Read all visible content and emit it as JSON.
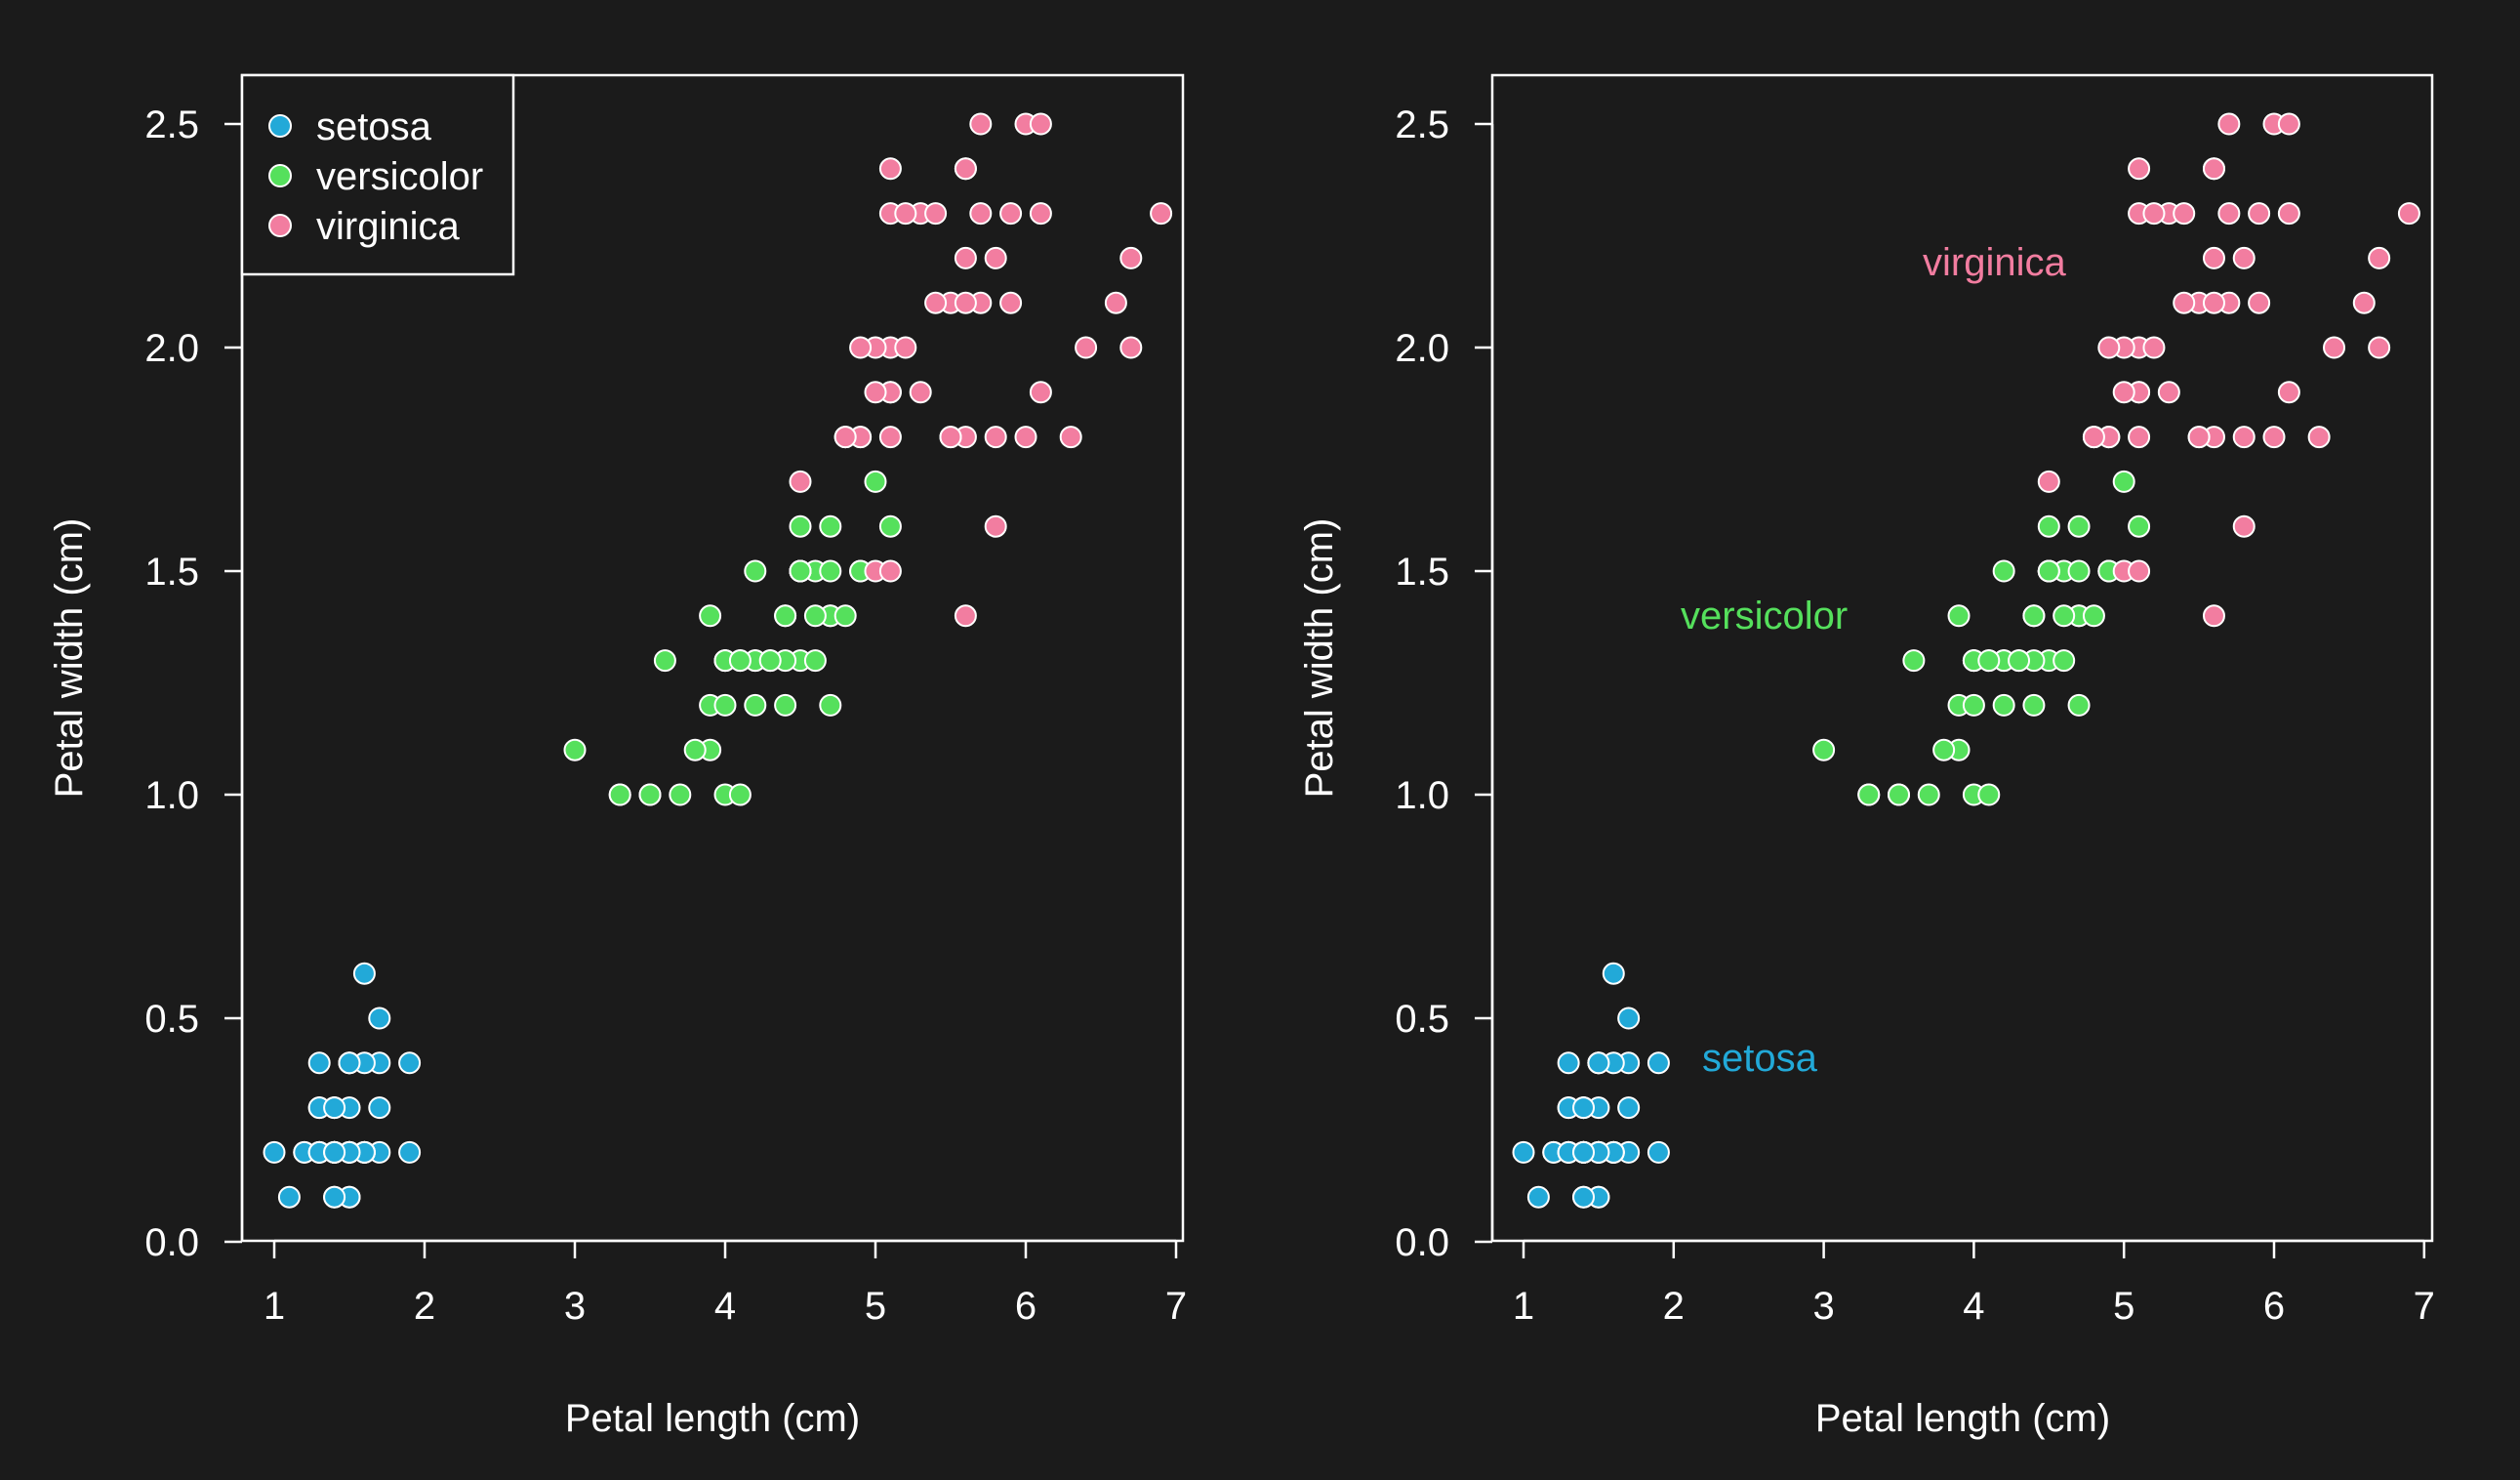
{
  "colors": {
    "background": "#1b1b1b",
    "foreground": "#ffffff",
    "setosa": "#22a9d8",
    "versicolor": "#55e05c",
    "virginica": "#f27da0",
    "marker_edge": "#ffffff"
  },
  "chart_data": [
    {
      "type": "scatter",
      "xlabel": "Petal length (cm)",
      "ylabel": "Petal width (cm)",
      "xlim": [
        0.8,
        7.1
      ],
      "ylim": [
        -0.03,
        2.6
      ],
      "xticks": [
        1,
        2,
        3,
        4,
        5,
        6,
        7
      ],
      "yticks": [
        0.0,
        0.5,
        1.0,
        1.5,
        2.0,
        2.5
      ],
      "xtick_labels": [
        "1",
        "2",
        "3",
        "4",
        "5",
        "6",
        "7"
      ],
      "ytick_labels": [
        "0.0",
        "0.5",
        "1.0",
        "1.5",
        "2.0",
        "2.5"
      ],
      "grid": false,
      "legend": "top-left",
      "legend_entries": [
        "setosa",
        "versicolor",
        "virginica"
      ],
      "series": [
        {
          "name": "setosa",
          "color": "#22a9d8",
          "points": [
            [
              1.4,
              0.2
            ],
            [
              1.4,
              0.2
            ],
            [
              1.3,
              0.2
            ],
            [
              1.5,
              0.2
            ],
            [
              1.4,
              0.2
            ],
            [
              1.7,
              0.4
            ],
            [
              1.4,
              0.3
            ],
            [
              1.5,
              0.2
            ],
            [
              1.4,
              0.2
            ],
            [
              1.5,
              0.1
            ],
            [
              1.5,
              0.2
            ],
            [
              1.6,
              0.2
            ],
            [
              1.4,
              0.1
            ],
            [
              1.1,
              0.1
            ],
            [
              1.2,
              0.2
            ],
            [
              1.5,
              0.4
            ],
            [
              1.3,
              0.4
            ],
            [
              1.4,
              0.3
            ],
            [
              1.7,
              0.3
            ],
            [
              1.5,
              0.3
            ],
            [
              1.7,
              0.2
            ],
            [
              1.5,
              0.4
            ],
            [
              1.0,
              0.2
            ],
            [
              1.7,
              0.5
            ],
            [
              1.9,
              0.2
            ],
            [
              1.6,
              0.2
            ],
            [
              1.6,
              0.4
            ],
            [
              1.5,
              0.2
            ],
            [
              1.4,
              0.2
            ],
            [
              1.6,
              0.2
            ],
            [
              1.6,
              0.2
            ],
            [
              1.5,
              0.4
            ],
            [
              1.5,
              0.1
            ],
            [
              1.4,
              0.2
            ],
            [
              1.5,
              0.2
            ],
            [
              1.2,
              0.2
            ],
            [
              1.3,
              0.2
            ],
            [
              1.4,
              0.1
            ],
            [
              1.3,
              0.2
            ],
            [
              1.5,
              0.2
            ],
            [
              1.3,
              0.3
            ],
            [
              1.3,
              0.3
            ],
            [
              1.3,
              0.2
            ],
            [
              1.6,
              0.6
            ],
            [
              1.9,
              0.4
            ],
            [
              1.4,
              0.3
            ],
            [
              1.6,
              0.2
            ],
            [
              1.4,
              0.2
            ],
            [
              1.5,
              0.2
            ],
            [
              1.4,
              0.2
            ]
          ]
        },
        {
          "name": "versicolor",
          "color": "#55e05c",
          "points": [
            [
              4.7,
              1.4
            ],
            [
              4.5,
              1.5
            ],
            [
              4.9,
              1.5
            ],
            [
              4.0,
              1.3
            ],
            [
              4.6,
              1.5
            ],
            [
              4.5,
              1.3
            ],
            [
              4.7,
              1.6
            ],
            [
              3.3,
              1.0
            ],
            [
              4.6,
              1.3
            ],
            [
              3.9,
              1.4
            ],
            [
              3.5,
              1.0
            ],
            [
              4.2,
              1.5
            ],
            [
              4.0,
              1.0
            ],
            [
              4.7,
              1.4
            ],
            [
              3.6,
              1.3
            ],
            [
              4.4,
              1.4
            ],
            [
              4.5,
              1.5
            ],
            [
              4.1,
              1.0
            ],
            [
              4.5,
              1.5
            ],
            [
              3.9,
              1.1
            ],
            [
              4.8,
              1.8
            ],
            [
              4.0,
              1.3
            ],
            [
              4.9,
              1.5
            ],
            [
              4.7,
              1.2
            ],
            [
              4.3,
              1.3
            ],
            [
              4.4,
              1.4
            ],
            [
              4.8,
              1.4
            ],
            [
              5.0,
              1.7
            ],
            [
              4.5,
              1.5
            ],
            [
              3.5,
              1.0
            ],
            [
              3.8,
              1.1
            ],
            [
              3.7,
              1.0
            ],
            [
              3.9,
              1.2
            ],
            [
              5.1,
              1.6
            ],
            [
              4.5,
              1.5
            ],
            [
              4.5,
              1.6
            ],
            [
              4.7,
              1.5
            ],
            [
              4.4,
              1.3
            ],
            [
              4.1,
              1.3
            ],
            [
              4.0,
              1.3
            ],
            [
              4.4,
              1.2
            ],
            [
              4.6,
              1.4
            ],
            [
              4.0,
              1.2
            ],
            [
              3.3,
              1.0
            ],
            [
              4.2,
              1.3
            ],
            [
              4.2,
              1.2
            ],
            [
              4.2,
              1.3
            ],
            [
              4.3,
              1.3
            ],
            [
              3.0,
              1.1
            ],
            [
              4.1,
              1.3
            ]
          ]
        },
        {
          "name": "virginica",
          "color": "#f27da0",
          "points": [
            [
              6.0,
              2.5
            ],
            [
              5.1,
              1.9
            ],
            [
              5.9,
              2.1
            ],
            [
              5.6,
              1.8
            ],
            [
              5.8,
              2.2
            ],
            [
              6.6,
              2.1
            ],
            [
              4.5,
              1.7
            ],
            [
              6.3,
              1.8
            ],
            [
              5.8,
              1.8
            ],
            [
              6.1,
              2.5
            ],
            [
              5.1,
              2.0
            ],
            [
              5.3,
              1.9
            ],
            [
              5.5,
              2.1
            ],
            [
              5.0,
              2.0
            ],
            [
              5.1,
              2.4
            ],
            [
              5.3,
              2.3
            ],
            [
              5.5,
              1.8
            ],
            [
              6.7,
              2.2
            ],
            [
              6.9,
              2.3
            ],
            [
              5.0,
              1.5
            ],
            [
              5.7,
              2.3
            ],
            [
              4.9,
              2.0
            ],
            [
              6.7,
              2.0
            ],
            [
              4.9,
              1.8
            ],
            [
              5.7,
              2.1
            ],
            [
              6.0,
              1.8
            ],
            [
              4.8,
              1.8
            ],
            [
              4.9,
              1.8
            ],
            [
              5.6,
              2.1
            ],
            [
              5.8,
              1.6
            ],
            [
              6.1,
              1.9
            ],
            [
              6.4,
              2.0
            ],
            [
              5.6,
              2.2
            ],
            [
              5.1,
              1.5
            ],
            [
              5.6,
              1.4
            ],
            [
              6.1,
              2.3
            ],
            [
              5.6,
              2.4
            ],
            [
              5.5,
              1.8
            ],
            [
              4.8,
              1.8
            ],
            [
              5.4,
              2.1
            ],
            [
              5.6,
              2.4
            ],
            [
              5.1,
              2.3
            ],
            [
              5.1,
              1.9
            ],
            [
              5.9,
              2.3
            ],
            [
              5.7,
              2.5
            ],
            [
              5.2,
              2.3
            ],
            [
              5.0,
              1.9
            ],
            [
              5.2,
              2.0
            ],
            [
              5.4,
              2.3
            ],
            [
              5.1,
              1.8
            ]
          ]
        }
      ]
    },
    {
      "type": "scatter",
      "xlabel": "Petal length (cm)",
      "ylabel": "Petal width (cm)",
      "xlim": [
        0.8,
        7.1
      ],
      "ylim": [
        -0.03,
        2.6
      ],
      "xticks": [
        1,
        2,
        3,
        4,
        5,
        6,
        7
      ],
      "yticks": [
        0.0,
        0.5,
        1.0,
        1.5,
        2.0,
        2.5
      ],
      "xtick_labels": [
        "1",
        "2",
        "3",
        "4",
        "5",
        "6",
        "7"
      ],
      "ytick_labels": [
        "0.0",
        "0.5",
        "1.0",
        "1.5",
        "2.0",
        "2.5"
      ],
      "grid": false,
      "legend": "none",
      "annotations": [
        {
          "text": "virginica",
          "series": "virginica",
          "x": 4.2,
          "y": 2.2
        },
        {
          "text": "versicolor",
          "series": "versicolor",
          "x": 2.9,
          "y": 1.4
        },
        {
          "text": "setosa",
          "series": "setosa",
          "x": 2.6,
          "y": 0.4
        }
      ],
      "series_ref": [
        "setosa",
        "versicolor",
        "virginica"
      ]
    }
  ]
}
